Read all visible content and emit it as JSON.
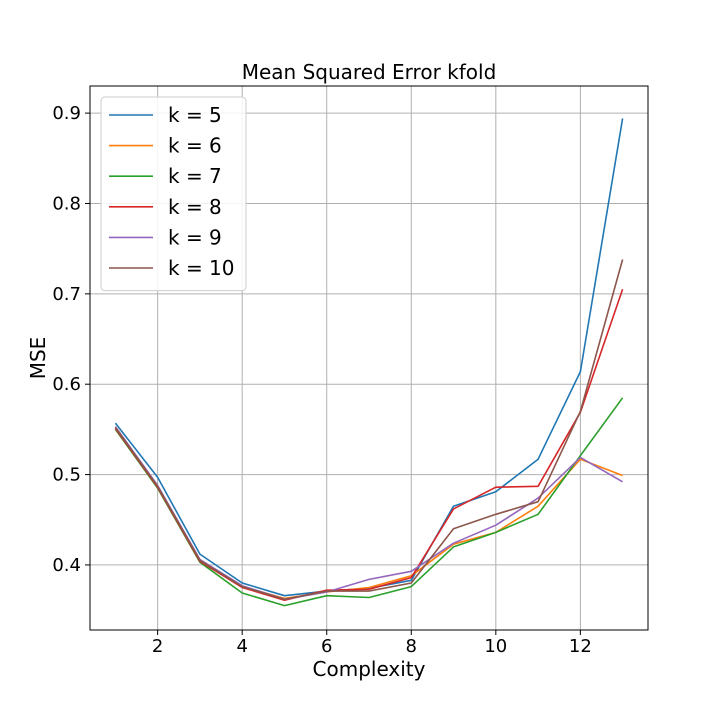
{
  "chart_data": {
    "type": "line",
    "title": "Mean Squared Error kfold",
    "xlabel": "Complexity",
    "ylabel": "MSE",
    "xlim": [
      0.4,
      13.6
    ],
    "ylim": [
      0.328,
      0.93
    ],
    "xticks": [
      2,
      4,
      6,
      8,
      10,
      12
    ],
    "yticks": [
      0.4,
      0.5,
      0.6,
      0.7,
      0.8,
      0.9
    ],
    "xtick_labels": [
      "2",
      "4",
      "6",
      "8",
      "10",
      "12"
    ],
    "ytick_labels": [
      "0.4",
      "0.5",
      "0.6",
      "0.7",
      "0.8",
      "0.9"
    ],
    "grid": true,
    "legend_position": "top-left",
    "x": [
      1,
      2,
      3,
      4,
      5,
      6,
      7,
      8,
      9,
      10,
      11,
      12,
      13
    ],
    "series": [
      {
        "name": "k = 5",
        "color": "#1f77b4",
        "values": [
          0.557,
          0.497,
          0.412,
          0.38,
          0.366,
          0.371,
          0.374,
          0.383,
          0.465,
          0.481,
          0.517,
          0.614,
          0.894
        ]
      },
      {
        "name": "k = 6",
        "color": "#ff7f0e",
        "values": [
          0.553,
          0.487,
          0.406,
          0.376,
          0.363,
          0.37,
          0.375,
          0.388,
          0.423,
          0.436,
          0.465,
          0.517,
          0.499
        ]
      },
      {
        "name": "k = 7",
        "color": "#2ca02c",
        "values": [
          0.55,
          0.485,
          0.403,
          0.369,
          0.355,
          0.366,
          0.364,
          0.376,
          0.42,
          0.436,
          0.456,
          0.521,
          0.585
        ]
      },
      {
        "name": "k = 8",
        "color": "#d62728",
        "values": [
          0.551,
          0.486,
          0.404,
          0.375,
          0.361,
          0.372,
          0.373,
          0.386,
          0.462,
          0.486,
          0.487,
          0.569,
          0.705
        ]
      },
      {
        "name": "k = 9",
        "color": "#9467bd",
        "values": [
          0.553,
          0.488,
          0.406,
          0.377,
          0.362,
          0.37,
          0.384,
          0.393,
          0.424,
          0.444,
          0.474,
          0.519,
          0.492
        ]
      },
      {
        "name": "k = 10",
        "color": "#8c564b",
        "values": [
          0.552,
          0.487,
          0.405,
          0.376,
          0.362,
          0.371,
          0.371,
          0.38,
          0.44,
          0.456,
          0.47,
          0.57,
          0.738
        ]
      }
    ]
  }
}
